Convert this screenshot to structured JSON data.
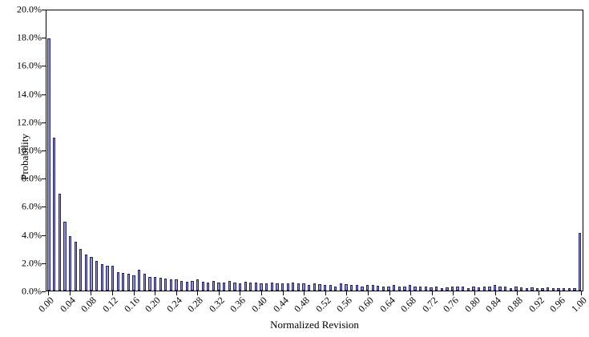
{
  "chart_data": {
    "type": "bar",
    "title": "",
    "xlabel": "Normalized Revision",
    "ylabel": "Probability",
    "x_start": 0.0,
    "x_step": 0.01,
    "ylim_percent": [
      0,
      20
    ],
    "grid": false,
    "legend": "none",
    "bar_fill_color": "#9595c6",
    "bar_border_color": "#22225e",
    "y_tick_labels": [
      "0.0%",
      "2.0%",
      "4.0%",
      "6.0%",
      "8.0%",
      "10.0%",
      "12.0%",
      "14.0%",
      "16.0%",
      "18.0%",
      "20.0%"
    ],
    "x_tick_labels": [
      "0.00",
      "0.04",
      "0.08",
      "0.12",
      "0.16",
      "0.20",
      "0.24",
      "0.28",
      "0.32",
      "0.36",
      "0.40",
      "0.44",
      "0.48",
      "0.52",
      "0.56",
      "0.60",
      "0.64",
      "0.68",
      "0.72",
      "0.76",
      "0.80",
      "0.84",
      "0.88",
      "0.92",
      "0.96",
      "1.00"
    ],
    "x_tick_every_n_bars": 4,
    "values_percent": [
      18.0,
      10.9,
      6.9,
      4.9,
      3.9,
      3.5,
      3.0,
      2.6,
      2.4,
      2.1,
      1.9,
      1.8,
      1.75,
      1.3,
      1.25,
      1.2,
      1.1,
      1.5,
      1.2,
      1.0,
      0.95,
      0.9,
      0.85,
      0.8,
      0.8,
      0.7,
      0.65,
      0.7,
      0.8,
      0.65,
      0.6,
      0.7,
      0.6,
      0.6,
      0.7,
      0.6,
      0.5,
      0.65,
      0.6,
      0.6,
      0.5,
      0.5,
      0.55,
      0.5,
      0.5,
      0.5,
      0.6,
      0.5,
      0.5,
      0.4,
      0.5,
      0.45,
      0.4,
      0.4,
      0.3,
      0.5,
      0.45,
      0.4,
      0.4,
      0.3,
      0.4,
      0.4,
      0.35,
      0.3,
      0.3,
      0.4,
      0.3,
      0.3,
      0.4,
      0.3,
      0.3,
      0.3,
      0.25,
      0.3,
      0.2,
      0.25,
      0.3,
      0.3,
      0.3,
      0.2,
      0.3,
      0.25,
      0.3,
      0.3,
      0.4,
      0.3,
      0.3,
      0.2,
      0.3,
      0.25,
      0.2,
      0.25,
      0.2,
      0.2,
      0.25,
      0.2,
      0.15,
      0.2,
      0.2,
      0.2,
      4.1
    ]
  }
}
